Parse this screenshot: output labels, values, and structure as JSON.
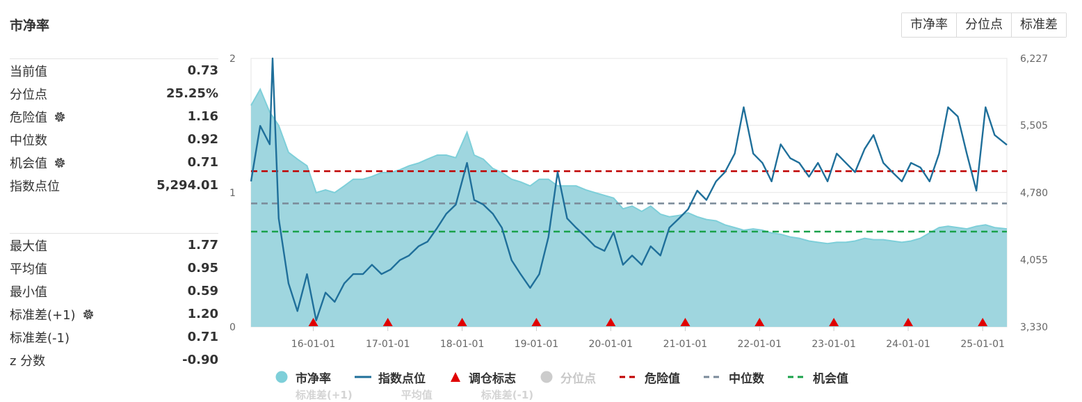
{
  "header": {
    "title": "市净率"
  },
  "tabs": [
    {
      "label": "市净率",
      "active": true
    },
    {
      "label": "分位点",
      "active": false
    },
    {
      "label": "标准差",
      "active": false
    }
  ],
  "stats_current": [
    {
      "label": "当前值",
      "value": "0.73",
      "gear": false
    },
    {
      "label": "分位点",
      "value": "25.25%",
      "gear": false
    },
    {
      "label": "危险值",
      "value": "1.16",
      "gear": true
    },
    {
      "label": "中位数",
      "value": "0.92",
      "gear": false
    },
    {
      "label": "机会值",
      "value": "0.71",
      "gear": true
    },
    {
      "label": "指数点位",
      "value": "5,294.01",
      "gear": false
    }
  ],
  "stats_summary": [
    {
      "label": "最大值",
      "value": "1.77",
      "gear": false
    },
    {
      "label": "平均值",
      "value": "0.95",
      "gear": false
    },
    {
      "label": "最小值",
      "value": "0.59",
      "gear": false
    },
    {
      "label": "标准差(+1)",
      "value": "1.20",
      "gear": true
    },
    {
      "label": "标准差(-1)",
      "value": "0.71",
      "gear": false
    },
    {
      "label": "z 分数",
      "value": "-0.90",
      "gear": false
    }
  ],
  "legend": [
    {
      "label": "市净率",
      "marker": "dot",
      "color": "#7ecfd9",
      "on": true
    },
    {
      "label": "指数点位",
      "marker": "line",
      "color": "#1f6f9a",
      "on": true
    },
    {
      "label": "调仓标志",
      "marker": "triangle",
      "color": "#e00000",
      "on": true
    },
    {
      "label": "分位点",
      "marker": "dot",
      "color": "#cccccc",
      "on": false
    },
    {
      "label": "危险值",
      "marker": "dashed",
      "color": "#c00000",
      "on": true
    },
    {
      "label": "中位数",
      "marker": "dashed",
      "color": "#7a8a99",
      "on": true
    },
    {
      "label": "机会值",
      "marker": "dashed",
      "color": "#19a14a",
      "on": true
    }
  ],
  "legend_row2": [
    "标准差(+1)",
    "平均值",
    "标准差(-1)"
  ],
  "chart_data": {
    "type": "area",
    "x_ticks": [
      "16-01-01",
      "17-01-01",
      "18-01-01",
      "19-01-01",
      "20-01-01",
      "21-01-01",
      "22-01-01",
      "23-01-01",
      "24-01-01",
      "25-01-01"
    ],
    "x_range": [
      "2015-03-01",
      "2025-04-30"
    ],
    "y_left": {
      "ticks": [
        "0",
        "1",
        "2"
      ],
      "range": [
        0,
        2
      ]
    },
    "y_right": {
      "ticks": [
        "3,330",
        "4,055",
        "4,780",
        "5,505",
        "6,227"
      ],
      "range": [
        3330,
        6227
      ]
    },
    "colors": {
      "pb_fill": "#9fd6df",
      "pb_line": "#7ecfd9",
      "index_line": "#1f6f9a",
      "danger": "#c00000",
      "median": "#7a8a99",
      "opportunity": "#19a14a",
      "marker": "#e00000"
    },
    "reference_lines": [
      {
        "name": "危险值",
        "value": 1.16
      },
      {
        "name": "中位数",
        "value": 0.92
      },
      {
        "name": "机会值",
        "value": 0.71
      }
    ],
    "rebalance_markers": [
      "2016-01-01",
      "2017-01-01",
      "2018-01-01",
      "2019-01-01",
      "2020-01-01",
      "2021-01-01",
      "2022-01-01",
      "2023-01-01",
      "2024-01-01",
      "2025-01-01"
    ],
    "series": [
      {
        "name": "市净率",
        "axis": "left",
        "x": [
          "2015-03-01",
          "2015-04-15",
          "2015-06-01",
          "2015-07-15",
          "2015-09-01",
          "2015-10-15",
          "2015-12-01",
          "2016-01-15",
          "2016-03-01",
          "2016-04-15",
          "2016-06-01",
          "2016-07-15",
          "2016-09-01",
          "2016-10-15",
          "2016-12-01",
          "2017-01-15",
          "2017-03-01",
          "2017-04-15",
          "2017-06-01",
          "2017-07-15",
          "2017-09-01",
          "2017-10-15",
          "2017-12-01",
          "2018-01-25",
          "2018-03-01",
          "2018-04-15",
          "2018-06-01",
          "2018-07-15",
          "2018-09-01",
          "2018-10-15",
          "2018-12-01",
          "2019-01-15",
          "2019-03-01",
          "2019-04-15",
          "2019-06-01",
          "2019-07-15",
          "2019-09-01",
          "2019-10-15",
          "2019-12-01",
          "2020-01-15",
          "2020-03-01",
          "2020-04-15",
          "2020-06-01",
          "2020-07-15",
          "2020-09-01",
          "2020-10-15",
          "2020-12-01",
          "2021-01-15",
          "2021-03-01",
          "2021-04-15",
          "2021-06-01",
          "2021-07-15",
          "2021-09-01",
          "2021-10-15",
          "2021-12-01",
          "2022-01-15",
          "2022-03-01",
          "2022-04-15",
          "2022-06-01",
          "2022-07-15",
          "2022-09-01",
          "2022-10-15",
          "2022-12-01",
          "2023-01-15",
          "2023-03-01",
          "2023-04-15",
          "2023-06-01",
          "2023-07-15",
          "2023-09-01",
          "2023-10-15",
          "2023-12-01",
          "2024-01-15",
          "2024-03-01",
          "2024-04-15",
          "2024-06-01",
          "2024-07-15",
          "2024-09-01",
          "2024-10-15",
          "2024-12-01",
          "2025-01-15",
          "2025-03-01",
          "2025-04-30"
        ],
        "values": [
          1.65,
          1.77,
          1.6,
          1.5,
          1.3,
          1.25,
          1.2,
          1.0,
          1.02,
          1.0,
          1.05,
          1.1,
          1.1,
          1.12,
          1.15,
          1.15,
          1.17,
          1.2,
          1.22,
          1.25,
          1.28,
          1.28,
          1.26,
          1.45,
          1.28,
          1.25,
          1.18,
          1.15,
          1.1,
          1.08,
          1.05,
          1.1,
          1.1,
          1.05,
          1.05,
          1.05,
          1.02,
          1.0,
          0.98,
          0.96,
          0.88,
          0.9,
          0.86,
          0.9,
          0.84,
          0.82,
          0.83,
          0.85,
          0.82,
          0.8,
          0.79,
          0.76,
          0.74,
          0.72,
          0.73,
          0.72,
          0.7,
          0.69,
          0.67,
          0.66,
          0.64,
          0.63,
          0.62,
          0.63,
          0.63,
          0.64,
          0.66,
          0.65,
          0.65,
          0.64,
          0.63,
          0.64,
          0.66,
          0.7,
          0.74,
          0.75,
          0.74,
          0.73,
          0.75,
          0.76,
          0.74,
          0.73
        ]
      },
      {
        "name": "指数点位",
        "axis": "right",
        "x": [
          "2015-03-01",
          "2015-04-15",
          "2015-06-01",
          "2015-06-15",
          "2015-07-15",
          "2015-09-01",
          "2015-10-15",
          "2015-12-01",
          "2016-01-15",
          "2016-03-01",
          "2016-04-15",
          "2016-06-01",
          "2016-07-15",
          "2016-09-01",
          "2016-10-15",
          "2016-12-01",
          "2017-01-15",
          "2017-03-01",
          "2017-04-15",
          "2017-06-01",
          "2017-07-15",
          "2017-09-01",
          "2017-10-15",
          "2017-12-01",
          "2018-01-25",
          "2018-03-01",
          "2018-04-15",
          "2018-06-01",
          "2018-07-15",
          "2018-09-01",
          "2018-10-15",
          "2018-12-01",
          "2019-01-15",
          "2019-03-01",
          "2019-04-15",
          "2019-06-01",
          "2019-07-15",
          "2019-09-01",
          "2019-10-15",
          "2019-12-01",
          "2020-01-15",
          "2020-03-01",
          "2020-04-15",
          "2020-06-01",
          "2020-07-15",
          "2020-09-01",
          "2020-10-15",
          "2020-12-01",
          "2021-01-15",
          "2021-03-01",
          "2021-04-15",
          "2021-06-01",
          "2021-07-15",
          "2021-09-01",
          "2021-10-15",
          "2021-12-01",
          "2022-01-15",
          "2022-03-01",
          "2022-04-15",
          "2022-06-01",
          "2022-07-15",
          "2022-09-01",
          "2022-10-15",
          "2022-12-01",
          "2023-01-15",
          "2023-03-01",
          "2023-04-15",
          "2023-06-01",
          "2023-07-15",
          "2023-09-01",
          "2023-10-15",
          "2023-12-01",
          "2024-01-15",
          "2024-03-01",
          "2024-04-15",
          "2024-06-01",
          "2024-07-15",
          "2024-09-01",
          "2024-10-15",
          "2024-12-01",
          "2025-01-15",
          "2025-03-01",
          "2025-04-30"
        ],
        "values": [
          4900,
          5500,
          5300,
          6227,
          4500,
          3800,
          3500,
          3900,
          3400,
          3700,
          3600,
          3800,
          3900,
          3900,
          4000,
          3900,
          3950,
          4050,
          4100,
          4200,
          4250,
          4400,
          4550,
          4650,
          5100,
          4700,
          4650,
          4550,
          4400,
          4050,
          3900,
          3750,
          3900,
          4300,
          5000,
          4500,
          4400,
          4300,
          4200,
          4150,
          4350,
          4000,
          4100,
          4000,
          4200,
          4100,
          4400,
          4500,
          4600,
          4800,
          4700,
          4900,
          5000,
          5200,
          5700,
          5200,
          5100,
          4900,
          5300,
          5150,
          5100,
          4950,
          5100,
          4900,
          5200,
          5100,
          5000,
          5250,
          5400,
          5100,
          5000,
          4900,
          5100,
          5050,
          4900,
          5200,
          5700,
          5600,
          5200,
          4800,
          5700,
          5400,
          5294
        ]
      }
    ]
  }
}
